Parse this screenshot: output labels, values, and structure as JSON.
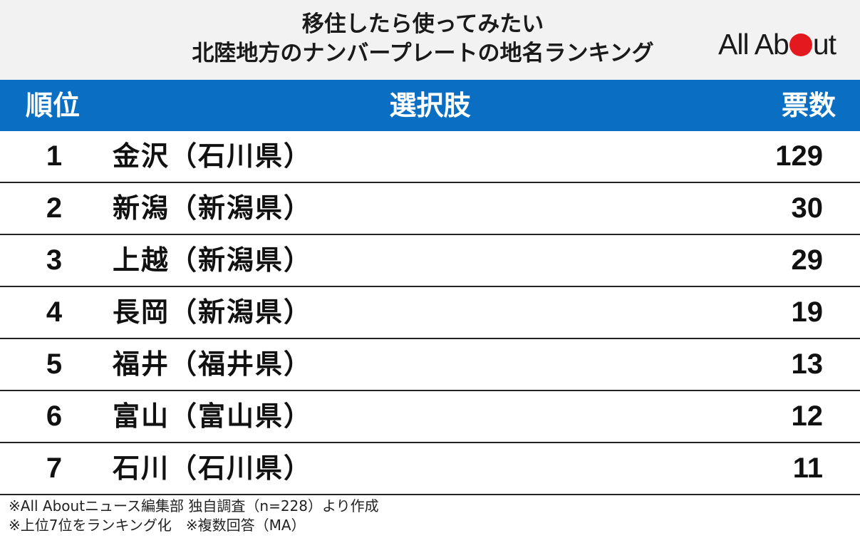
{
  "title": {
    "line1": "移住したら使ってみたい",
    "line2": "北陸地方のナンバープレートの地名ランキング"
  },
  "logo": {
    "text_before": "All Ab",
    "text_after": "ut",
    "dot_color": "#e4191f"
  },
  "table": {
    "header_color": "#0a6fc2",
    "headers": {
      "rank": "順位",
      "choice": "選択肢",
      "votes": "票数"
    },
    "rows": [
      {
        "rank": "1",
        "name": "金沢（石川県）",
        "votes": "129"
      },
      {
        "rank": "2",
        "name": "新潟（新潟県）",
        "votes": "30"
      },
      {
        "rank": "3",
        "name": "上越（新潟県）",
        "votes": "29"
      },
      {
        "rank": "4",
        "name": "長岡（新潟県）",
        "votes": "19"
      },
      {
        "rank": "5",
        "name": "福井（福井県）",
        "votes": "13"
      },
      {
        "rank": "6",
        "name": "富山（富山県）",
        "votes": "12"
      },
      {
        "rank": "7",
        "name": "石川（石川県）",
        "votes": "11"
      }
    ]
  },
  "notes": [
    "※All Aboutニュース編集部 独自調査（n=228）より作成",
    "※上位7位をランキング化　※複数回答（MA）"
  ]
}
